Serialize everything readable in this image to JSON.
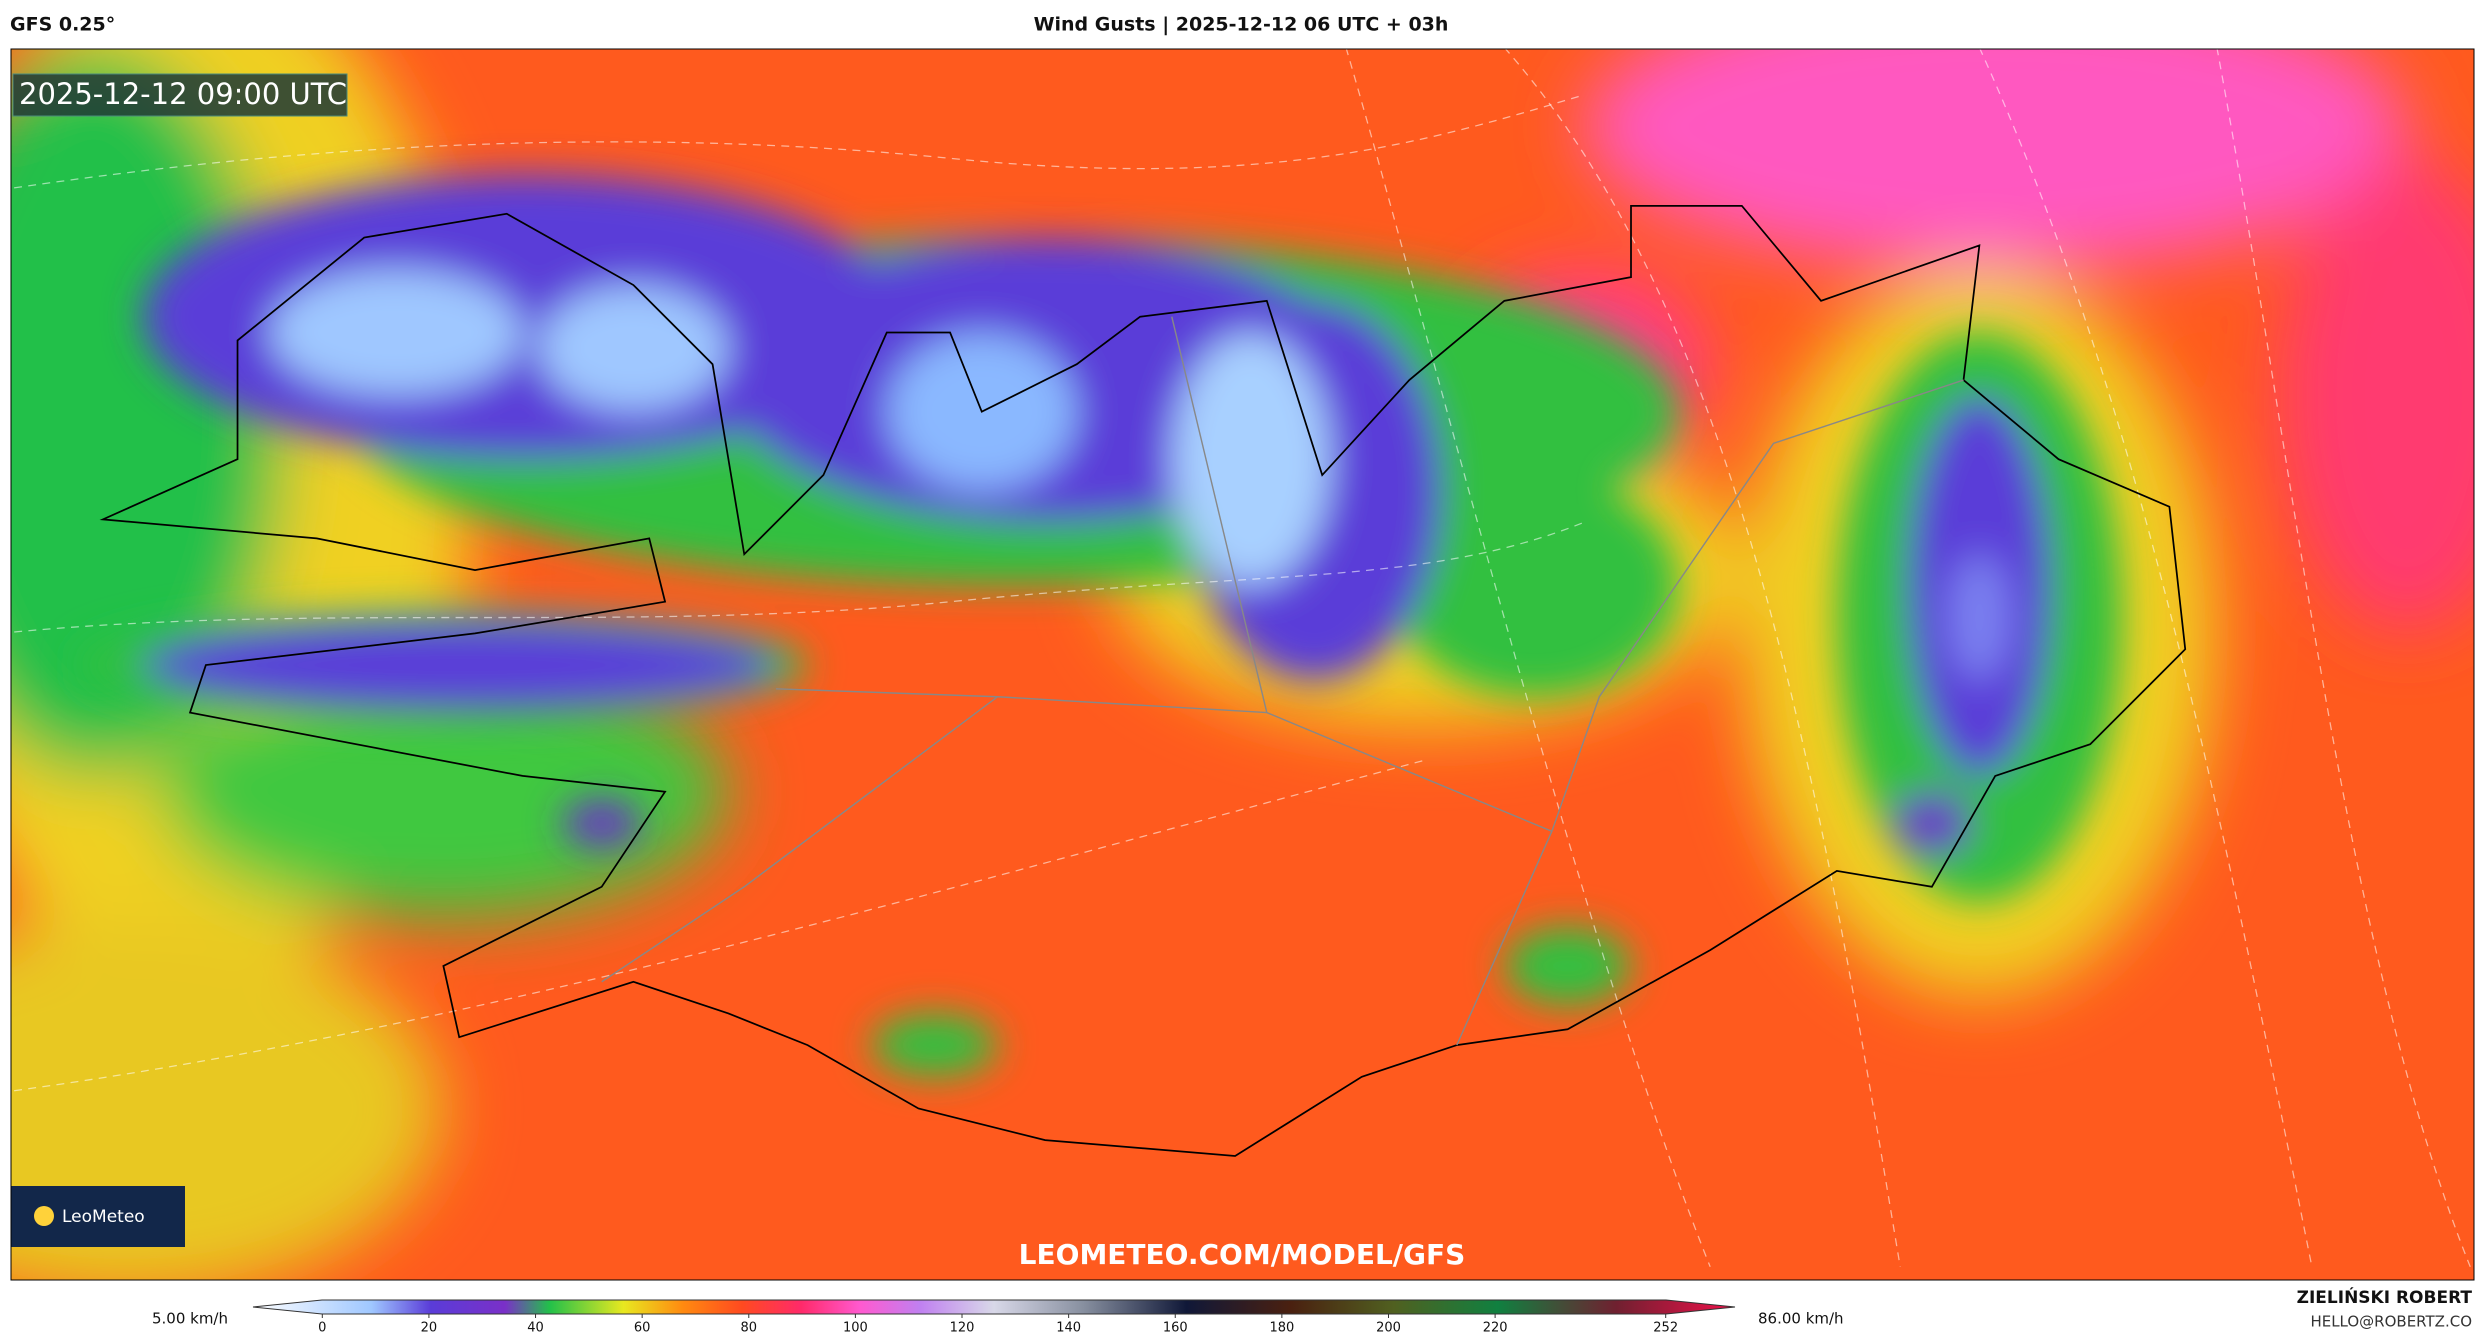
{
  "header": {
    "model": "GFS 0.25°",
    "title": "Wind Gusts | 2025-12-12 06 UTC + 03h"
  },
  "map": {
    "timestamp": "2025-12-12 09:00 UTC",
    "logo": "LeoMeteo",
    "url": "LEOMETEO.COM/MODEL/GFS"
  },
  "colorbar": {
    "min_label": "5.00 km/h",
    "max_label": "86.00 km/h",
    "lim": [
      -13,
      265
    ],
    "ticks": [
      0,
      20,
      40,
      60,
      80,
      100,
      120,
      140,
      160,
      180,
      200,
      220,
      252
    ]
  },
  "footer": {
    "author": "ZIELIŃSKI ROBERT",
    "email": "HELLO@ROBERTZ.CO"
  }
}
